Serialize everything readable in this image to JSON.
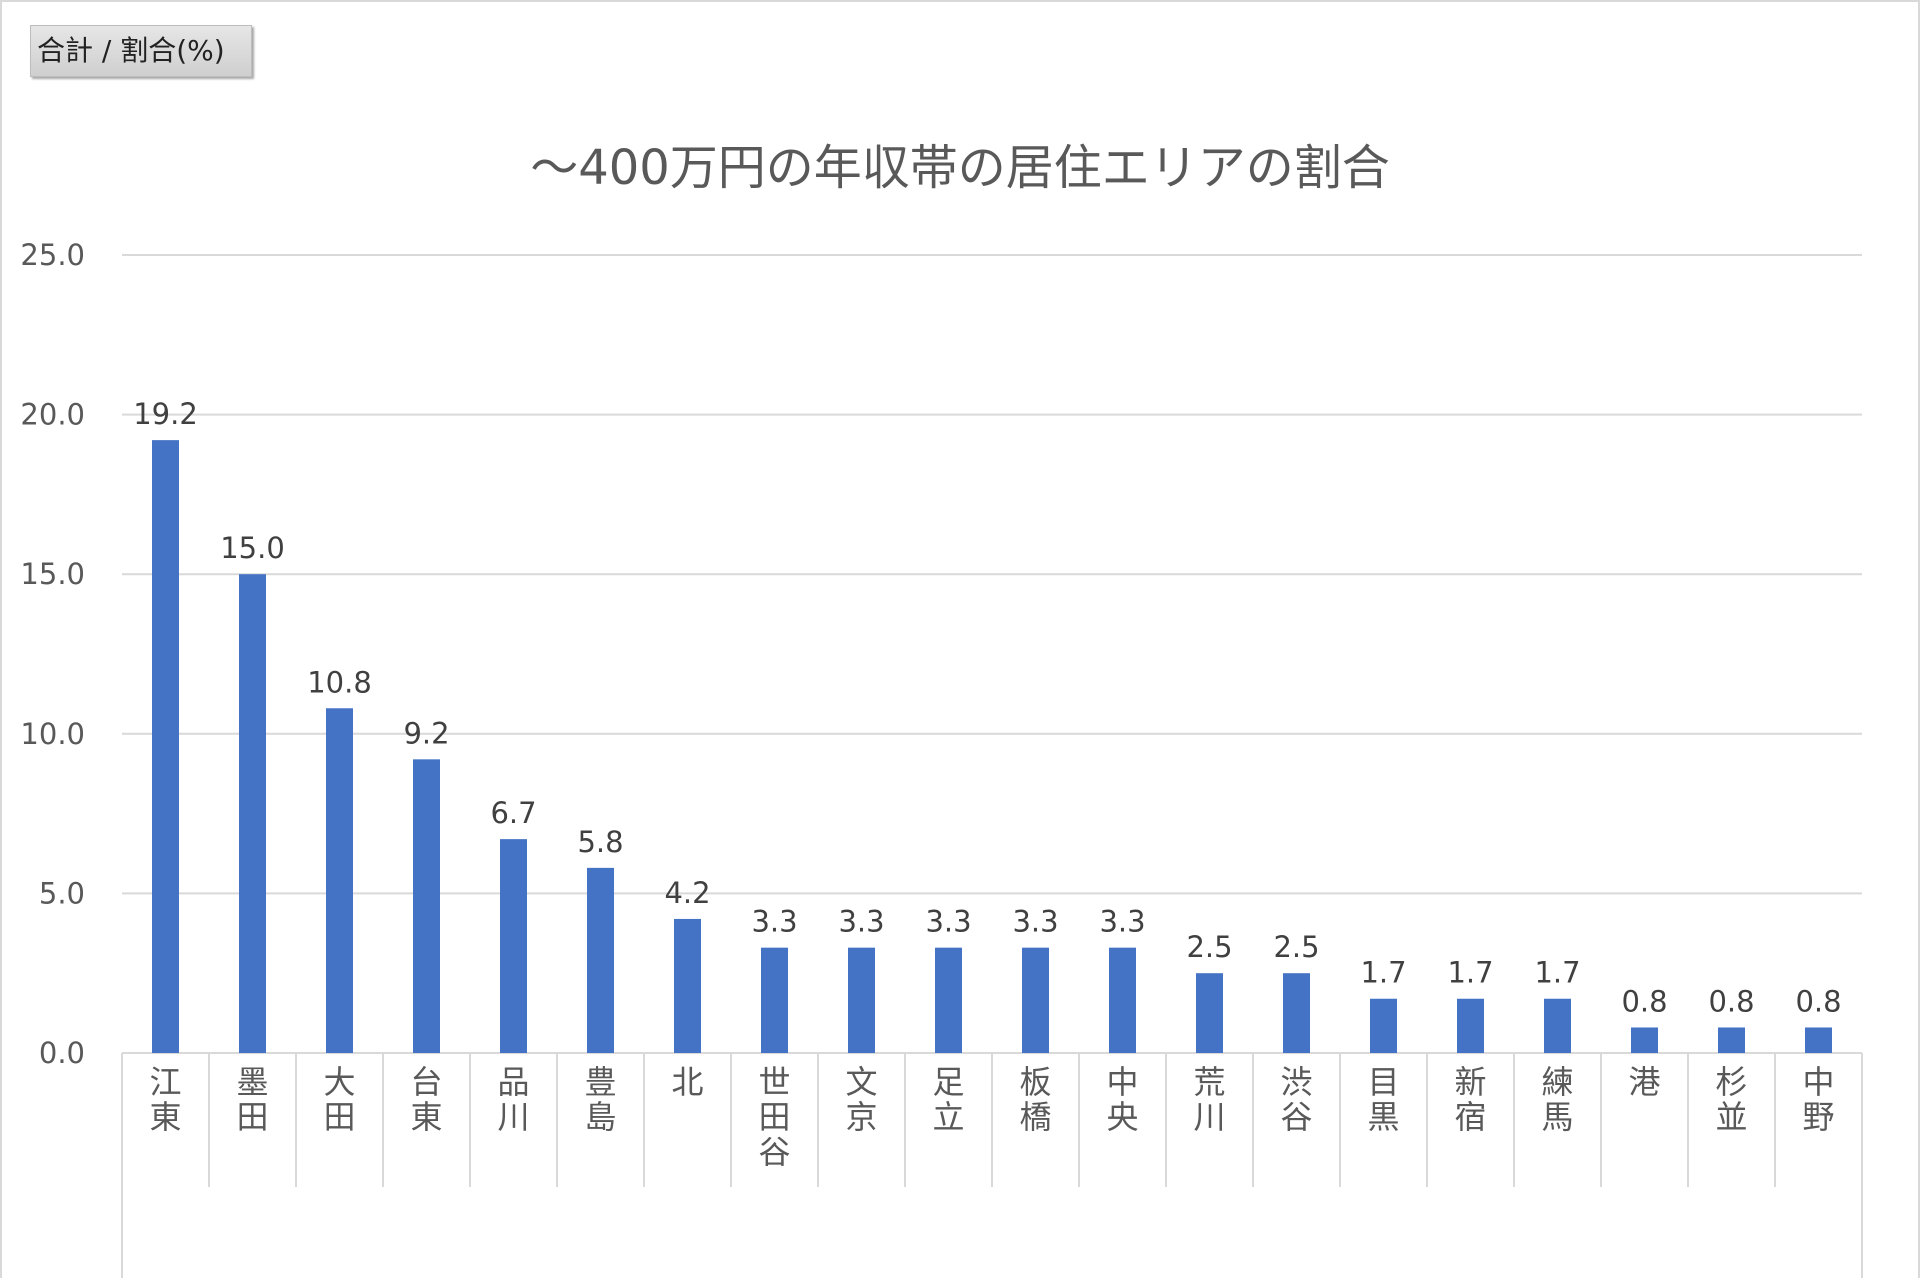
{
  "field_button": {
    "label": "合計 / 割合(%)"
  },
  "chart_data": {
    "type": "bar",
    "title": "～400万円の年収帯の居住エリアの割合",
    "xlabel": "",
    "ylabel": "",
    "ylim": [
      0,
      25
    ],
    "yticks": [
      "0.0",
      "5.0",
      "10.0",
      "15.0",
      "20.0",
      "25.0"
    ],
    "grid": true,
    "legend": "none",
    "bar_color": "#4472c4",
    "categories": [
      "江東",
      "墨田",
      "大田",
      "台東",
      "品川",
      "豊島",
      "北",
      "世田谷",
      "文京",
      "足立",
      "板橋",
      "中央",
      "荒川",
      "渋谷",
      "目黒",
      "新宿",
      "練馬",
      "港",
      "杉並",
      "中野"
    ],
    "values": [
      19.2,
      15.0,
      10.8,
      9.2,
      6.7,
      5.8,
      4.2,
      3.3,
      3.3,
      3.3,
      3.3,
      3.3,
      2.5,
      2.5,
      1.7,
      1.7,
      1.7,
      0.8,
      0.8,
      0.8
    ],
    "data_labels": [
      "19.2",
      "15.0",
      "10.8",
      "9.2",
      "6.7",
      "5.8",
      "4.2",
      "3.3",
      "3.3",
      "3.3",
      "3.3",
      "3.3",
      "2.5",
      "2.5",
      "1.7",
      "1.7",
      "1.7",
      "0.8",
      "0.8",
      "0.8"
    ]
  }
}
